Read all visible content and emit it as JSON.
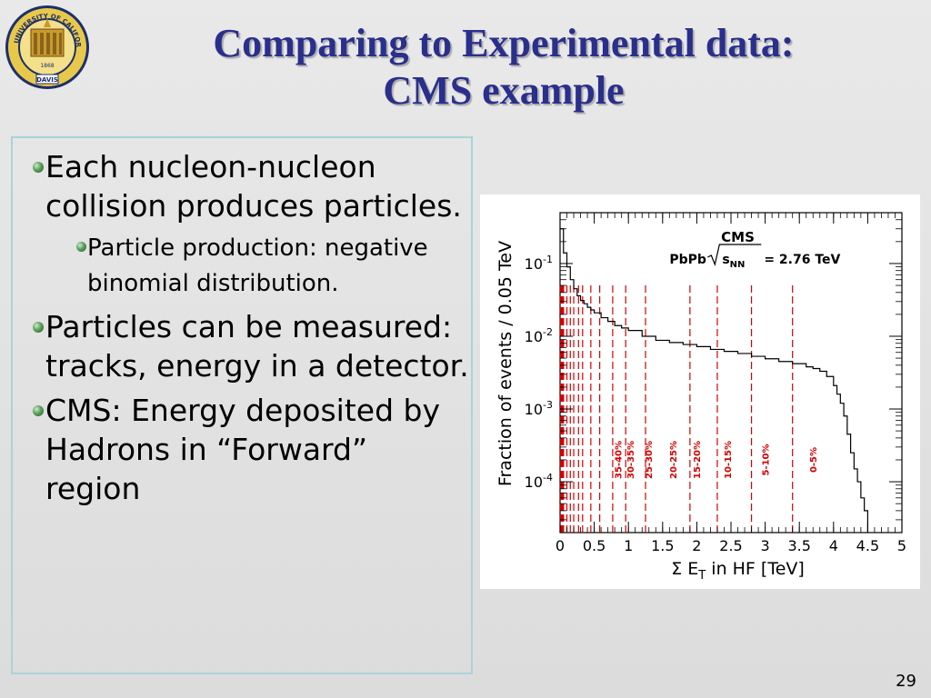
{
  "title_line1": "Comparing to Experimental data:",
  "title_line2": "CMS example",
  "logo": {
    "top_text": "THE UNIVERSITY OF CALIFORNIA",
    "bottom_text": "DAVIS",
    "year": "1868",
    "icon": "uc-seal"
  },
  "bullets": [
    {
      "text": "Each nucleon-nucleon collision produces particles.",
      "sub": [
        {
          "text": "Particle production: negative binomial distribution."
        }
      ]
    },
    {
      "text": "Particles can be measured: tracks, energy in a detector.",
      "sub": []
    },
    {
      "text": "CMS: Energy deposited by Hadrons in “Forward” region",
      "sub": []
    }
  ],
  "page_number": "29",
  "colors": {
    "title": "#2a2f8c",
    "border": "#a9d4d8",
    "cut": "#d40000",
    "bullet": "#3f8a46"
  },
  "chart_data": {
    "type": "line",
    "title": "CMS",
    "subtitle_left": "PbPb",
    "subtitle_right": "= 2.76 TeV",
    "sqrt_label": "s",
    "sqrt_sub": "NN",
    "xlabel_prefix": "Σ E",
    "xlabel_sub": "T",
    "xlabel_suffix": " in HF [TeV]",
    "ylabel": "Fraction of events / 0.05 TeV",
    "xlim": [
      0,
      5
    ],
    "ylim": [
      2e-05,
      0.5
    ],
    "yscale": "log",
    "x_ticks": [
      "0",
      "0.5",
      "1",
      "1.5",
      "2",
      "2.5",
      "3",
      "3.5",
      "4",
      "4.5",
      "5"
    ],
    "y_ticks": [
      {
        "base": "10",
        "exp": "-1",
        "value": 0.1
      },
      {
        "base": "10",
        "exp": "-2",
        "value": 0.01
      },
      {
        "base": "10",
        "exp": "-3",
        "value": 0.001
      },
      {
        "base": "10",
        "exp": "-4",
        "value": 0.0001
      }
    ],
    "series": [
      {
        "x": [
          0,
          0.05,
          0.1,
          0.15,
          0.2,
          0.25,
          0.3,
          0.35,
          0.4,
          0.45,
          0.5,
          0.6,
          0.7,
          0.8,
          0.9,
          1.0,
          1.2,
          1.4,
          1.6,
          1.8,
          2.0,
          2.2,
          2.4,
          2.6,
          2.8,
          3.0,
          3.2,
          3.4,
          3.6,
          3.7,
          3.8,
          3.9,
          4.0,
          4.05,
          4.1,
          4.15,
          4.2,
          4.25,
          4.3,
          4.35,
          4.4,
          4.45
        ],
        "y": [
          0.3,
          0.14,
          0.09,
          0.06,
          0.045,
          0.036,
          0.031,
          0.028,
          0.025,
          0.023,
          0.021,
          0.018,
          0.016,
          0.014,
          0.013,
          0.012,
          0.01,
          0.0088,
          0.0082,
          0.0077,
          0.0072,
          0.0066,
          0.0062,
          0.0058,
          0.0053,
          0.0049,
          0.0045,
          0.0042,
          0.0038,
          0.0036,
          0.0033,
          0.0028,
          0.0021,
          0.0016,
          0.0012,
          0.0008,
          0.00045,
          0.00025,
          0.00015,
          0.0001,
          6e-05,
          4e-05
        ]
      }
    ],
    "cut_lines": [
      0.05,
      0.1,
      0.15,
      0.2,
      0.27,
      0.33,
      0.45,
      0.58,
      0.77,
      0.96,
      1.25,
      1.9,
      2.3,
      2.8,
      3.4
    ],
    "centrality_labels": [
      {
        "text": "35-40%",
        "x": 0.9
      },
      {
        "text": "30-35%",
        "x": 1.08
      },
      {
        "text": "25-30%",
        "x": 1.34
      },
      {
        "text": "20-25%",
        "x": 1.7
      },
      {
        "text": "15-20%",
        "x": 2.05
      },
      {
        "text": "10-15%",
        "x": 2.5
      },
      {
        "text": "5-10%",
        "x": 3.05
      },
      {
        "text": "0-5%",
        "x": 3.75
      }
    ]
  }
}
